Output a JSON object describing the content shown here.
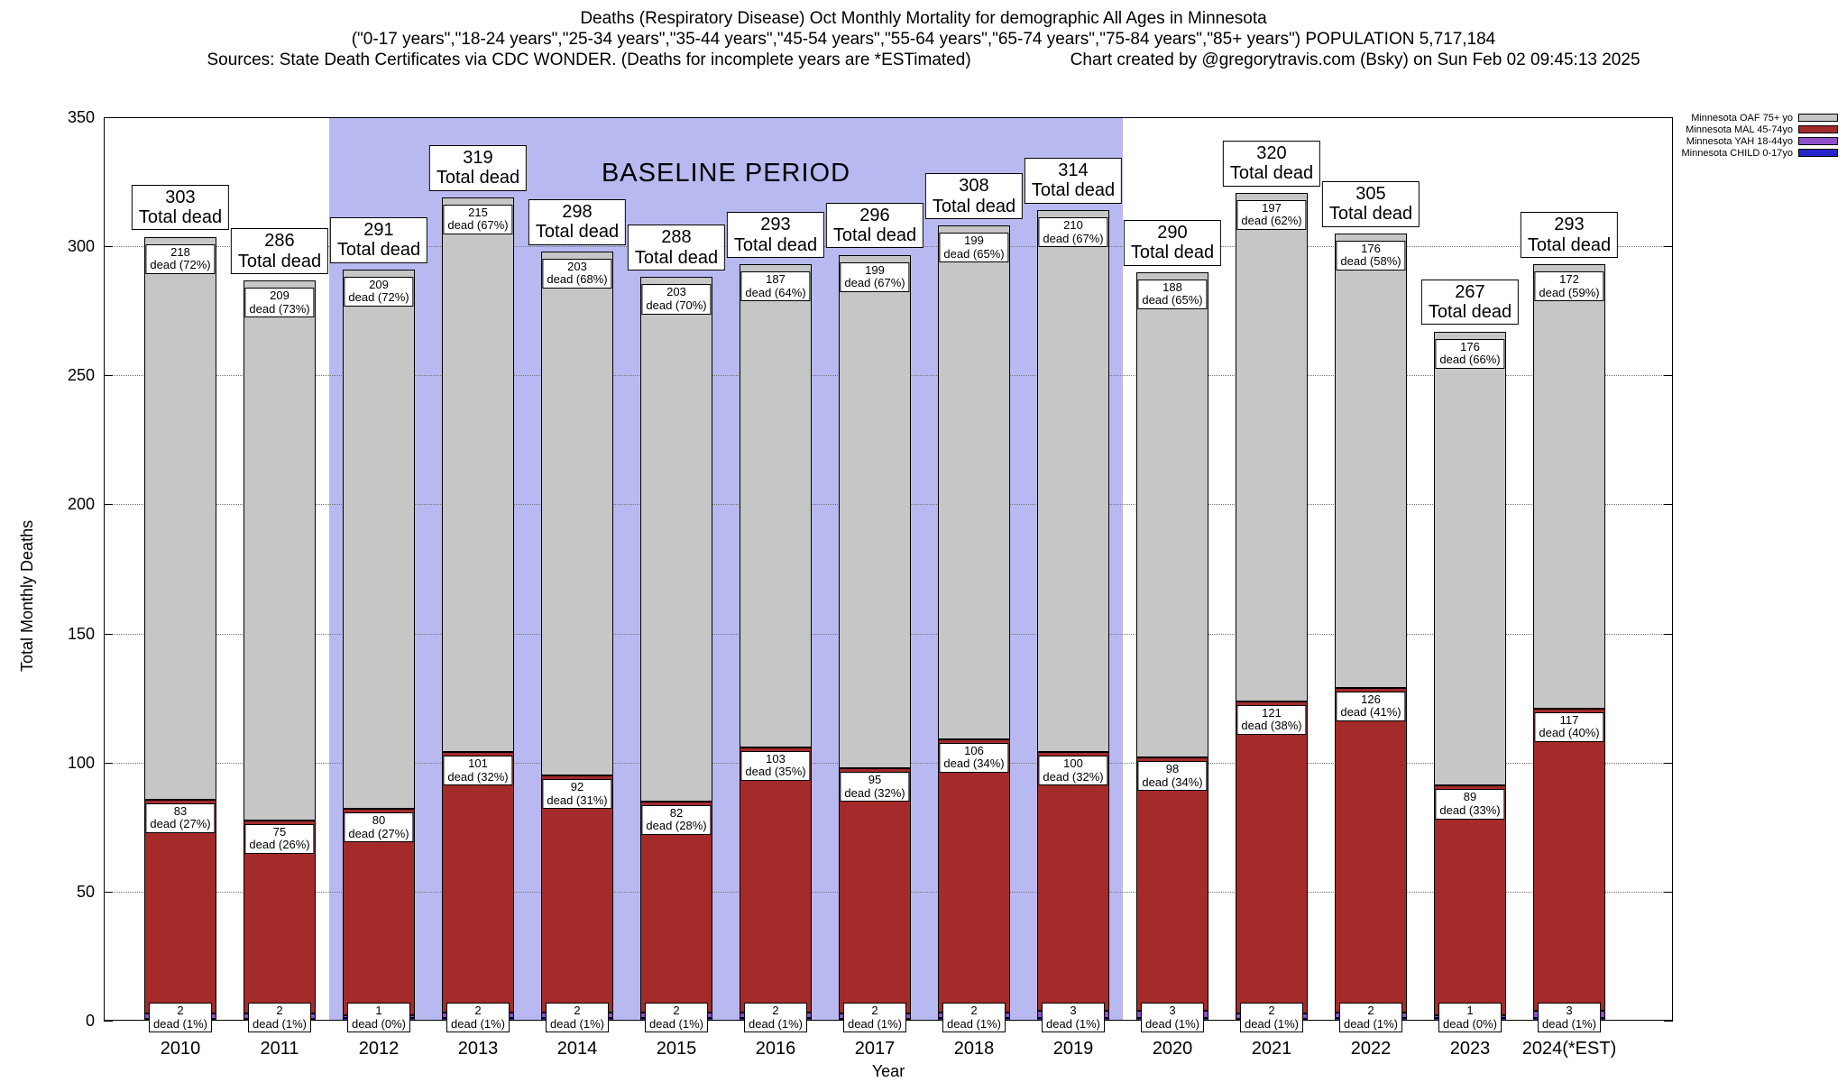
{
  "title": {
    "line1": "Deaths (Respiratory Disease) Oct Monthly Mortality for demographic All Ages in Minnesota",
    "line2": "(\"0-17 years\",\"18-24 years\",\"25-34 years\",\"35-44 years\",\"45-54 years\",\"55-64 years\",\"65-74 years\",\"75-84 years\",\"85+ years\") POPULATION 5,717,184",
    "line3_left": "Sources: State Death Certificates via CDC WONDER. (Deaths for incomplete years are *ESTimated)",
    "line3_right": "Chart created by @gregorytravis.com (Bsky) on Sun Feb 02 09:45:13 2025"
  },
  "legend": [
    {
      "key": "oaf",
      "label": "Minnesota OAF 75+ yo"
    },
    {
      "key": "mal",
      "label": "Minnesota MAL 45-74yo"
    },
    {
      "key": "yah",
      "label": "Minnesota YAH 18-44yo"
    },
    {
      "key": "child",
      "label": "Minnesota CHILD 0-17yo"
    }
  ],
  "chart_data": {
    "type": "bar",
    "stacked": true,
    "title": "Deaths (Respiratory Disease) Oct Monthly Mortality for demographic All Ages in Minnesota",
    "xlabel": "Year",
    "ylabel": "Total Monthly Deaths",
    "ylim": [
      0,
      350
    ],
    "yticks": [
      0,
      50,
      100,
      150,
      200,
      250,
      300,
      350
    ],
    "grid": "horizontal-dotted",
    "legend_position": "top-right",
    "total_sub_label": "Total dead",
    "baseline_period": {
      "label": "BASELINE PERIOD",
      "from_year": "2012",
      "to_year": "2019"
    },
    "series_colors": {
      "oaf": "#c6c6c6",
      "mal": "#a52a2a",
      "yah": "#9050c8",
      "child": "#2424cc"
    },
    "bars": [
      {
        "year": "2010",
        "total": 303,
        "oaf": 218,
        "oaf_sub": "dead (72%)",
        "mal": 83,
        "mal_sub": "dead (27%)",
        "yah": 2,
        "yah_sub": "dead (1%)"
      },
      {
        "year": "2011",
        "total": 286,
        "oaf": 209,
        "oaf_sub": "dead (73%)",
        "mal": 75,
        "mal_sub": "dead (26%)",
        "yah": 2,
        "yah_sub": "dead (1%)"
      },
      {
        "year": "2012",
        "total": 291,
        "oaf": 209,
        "oaf_sub": "dead (72%)",
        "mal": 80,
        "mal_sub": "dead (27%)",
        "yah": 1,
        "yah_sub": "dead (0%)"
      },
      {
        "year": "2013",
        "total": 319,
        "oaf": 215,
        "oaf_sub": "dead (67%)",
        "mal": 101,
        "mal_sub": "dead (32%)",
        "yah": 2,
        "yah_sub": "dead (1%)"
      },
      {
        "year": "2014",
        "total": 298,
        "oaf": 203,
        "oaf_sub": "dead (68%)",
        "mal": 92,
        "mal_sub": "dead (31%)",
        "yah": 2,
        "yah_sub": "dead (1%)"
      },
      {
        "year": "2015",
        "total": 288,
        "oaf": 203,
        "oaf_sub": "dead (70%)",
        "mal": 82,
        "mal_sub": "dead (28%)",
        "yah": 2,
        "yah_sub": "dead (1%)"
      },
      {
        "year": "2016",
        "total": 293,
        "oaf": 187,
        "oaf_sub": "dead (64%)",
        "mal": 103,
        "mal_sub": "dead (35%)",
        "yah": 2,
        "yah_sub": "dead (1%)"
      },
      {
        "year": "2017",
        "total": 296,
        "oaf": 199,
        "oaf_sub": "dead (67%)",
        "mal": 95,
        "mal_sub": "dead (32%)",
        "yah": 2,
        "yah_sub": "dead (1%)"
      },
      {
        "year": "2018",
        "total": 308,
        "oaf": 199,
        "oaf_sub": "dead (65%)",
        "mal": 106,
        "mal_sub": "dead (34%)",
        "yah": 2,
        "yah_sub": "dead (1%)"
      },
      {
        "year": "2019",
        "total": 314,
        "oaf": 210,
        "oaf_sub": "dead (67%)",
        "mal": 100,
        "mal_sub": "dead (32%)",
        "yah": 3,
        "yah_sub": "dead (1%)"
      },
      {
        "year": "2020",
        "total": 290,
        "oaf": 188,
        "oaf_sub": "dead (65%)",
        "mal": 98,
        "mal_sub": "dead (34%)",
        "yah": 3,
        "yah_sub": "dead (1%)"
      },
      {
        "year": "2021",
        "total": 320,
        "oaf": 197,
        "oaf_sub": "dead (62%)",
        "mal": 121,
        "mal_sub": "dead (38%)",
        "yah": 2,
        "yah_sub": "dead (1%)"
      },
      {
        "year": "2022",
        "total": 305,
        "oaf": 176,
        "oaf_sub": "dead (58%)",
        "mal": 126,
        "mal_sub": "dead (41%)",
        "yah": 2,
        "yah_sub": "dead (1%)"
      },
      {
        "year": "2023",
        "total": 267,
        "oaf": 176,
        "oaf_sub": "dead (66%)",
        "mal": 89,
        "mal_sub": "dead (33%)",
        "yah": 1,
        "yah_sub": "dead (0%)"
      },
      {
        "year": "2024(*EST)",
        "total": 293,
        "oaf": 172,
        "oaf_sub": "dead (59%)",
        "mal": 117,
        "mal_sub": "dead (40%)",
        "yah": 3,
        "yah_sub": "dead (1%)"
      }
    ]
  }
}
